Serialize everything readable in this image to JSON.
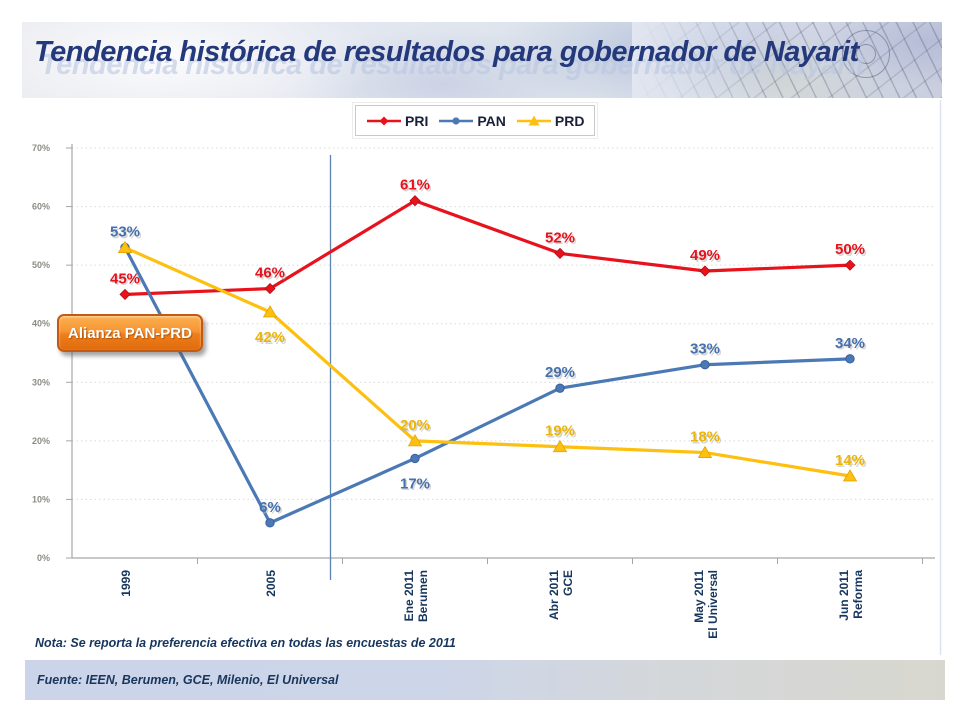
{
  "slide": {
    "title": "Tendencia histórica de resultados para gobernador de Nayarit",
    "callout_label": "Alianza PAN-PRD",
    "note": "Nota: Se reporta la preferencia efectiva en todas las encuestas de 2011",
    "source": "Fuente: IEEN, Berumen, GCE, Milenio, El Universal"
  },
  "colors": {
    "pri": "#e8121c",
    "pan": "#4a79b5",
    "prd": "#fdbf10",
    "title_navy": "#24397b",
    "axis_label_navy": "#17365d",
    "grid": "#d9d9d9",
    "axis": "#a6a6a6",
    "ytick_text": "#8c8c85",
    "separator": "#5b84b1",
    "callout_orange": "#ee7d1b"
  },
  "chart_data": {
    "type": "line",
    "title": "",
    "xlabel": "",
    "ylabel": "",
    "ylim": [
      0,
      70
    ],
    "ytick_step": 10,
    "ytick_suffix": "%",
    "grid": true,
    "gridstyle": "dotted",
    "legend_position": "top-center",
    "separator_between": [
      "2005",
      "Ene 2011"
    ],
    "annotation": "Alianza PAN-PRD",
    "categories": [
      [
        "1999"
      ],
      [
        "2005"
      ],
      [
        "Ene 2011",
        "Berumen"
      ],
      [
        "Abr 2011",
        "GCE"
      ],
      [
        "May 2011",
        "El Universal"
      ],
      [
        "Jun 2011",
        "Reforma"
      ]
    ],
    "series": [
      {
        "name": "PRI",
        "color": "#e8121c",
        "label_color": "#e8121c",
        "marker": "diamond",
        "values": [
          45,
          46,
          61,
          52,
          49,
          50
        ],
        "labels": [
          "45%",
          "46%",
          "61%",
          "52%",
          "49%",
          "50%"
        ],
        "label_below": [],
        "hide_labels": []
      },
      {
        "name": "PAN",
        "color": "#4a79b5",
        "label_color": "#4671ad",
        "marker": "circle",
        "values": [
          53,
          6,
          17,
          29,
          33,
          34
        ],
        "labels": [
          "53%",
          "6%",
          "17%",
          "29%",
          "33%",
          "34%"
        ],
        "label_below": [
          2
        ],
        "hide_labels": []
      },
      {
        "name": "PRD",
        "color": "#fdbf10",
        "label_color": "#edb505",
        "marker": "triangle",
        "values": [
          53,
          42,
          20,
          19,
          18,
          14
        ],
        "labels": [
          "53%",
          "42%",
          "20%",
          "19%",
          "18%",
          "14%"
        ],
        "label_below": [
          1
        ],
        "hide_labels": [
          0
        ]
      }
    ]
  }
}
